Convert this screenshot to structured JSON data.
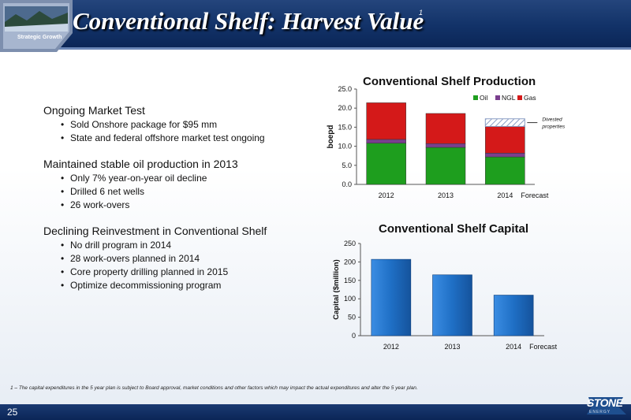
{
  "header": {
    "title": "Conventional Shelf: Harvest Value",
    "title_superscript": "1",
    "tagline": "Strategic Growth"
  },
  "sections": [
    {
      "heading": "Ongoing Market Test",
      "items": [
        "Sold Onshore package for $95 mm",
        "State and federal offshore market test ongoing"
      ]
    },
    {
      "heading": "Maintained stable oil production in 2013",
      "items": [
        "Only 7% year-on-year oil decline",
        "Drilled 6 net wells",
        "26 work-overs"
      ]
    },
    {
      "heading": "Declining Reinvestment in Conventional Shelf",
      "items": [
        "No drill program in 2014",
        "28 work-overs planned in 2014",
        "Core property drilling planned in 2015",
        "Optimize decommissioning program"
      ]
    }
  ],
  "chart_data": [
    {
      "type": "bar",
      "stacked": true,
      "title": "Conventional Shelf Production",
      "ylabel": "boepd",
      "ylim": [
        0,
        25
      ],
      "yticks": [
        "0.0",
        "5.0",
        "10.0",
        "15.0",
        "20.0",
        "25.0"
      ],
      "categories": [
        "2012",
        "2013",
        "2014"
      ],
      "category_suffix": "Forecast",
      "series": [
        {
          "name": "Oil",
          "color": "#1e9e1e",
          "values": [
            10.8,
            9.7,
            7.2
          ]
        },
        {
          "name": "NGL",
          "color": "#7a3f8e",
          "values": [
            1.0,
            1.0,
            1.0
          ]
        },
        {
          "name": "Gas",
          "color": "#d41919",
          "values": [
            9.6,
            7.9,
            7.0
          ]
        }
      ],
      "divested_value": 2.0,
      "annotation": [
        "Divested",
        "properties"
      ],
      "legend": "top-right",
      "grid": false
    },
    {
      "type": "bar",
      "title": "Conventional Shelf Capital",
      "ylabel": "Capital ($million)",
      "ylim": [
        0,
        250
      ],
      "yticks": [
        "0",
        "50",
        "100",
        "150",
        "200",
        "250"
      ],
      "categories": [
        "2012",
        "2013",
        "2014"
      ],
      "category_suffix": "Forecast",
      "values": [
        207,
        165,
        110
      ],
      "color": "#1f6fc5",
      "grid": false
    }
  ],
  "footnote": "1 – The capital expenditures in the 5 year plan is subject to Board approval, market conditions and other factors which may impact the actual expenditures and alter the 5 year plan.",
  "footer": {
    "page_number": "25",
    "logo_text": "STONE",
    "logo_sub": "ENERGY"
  }
}
